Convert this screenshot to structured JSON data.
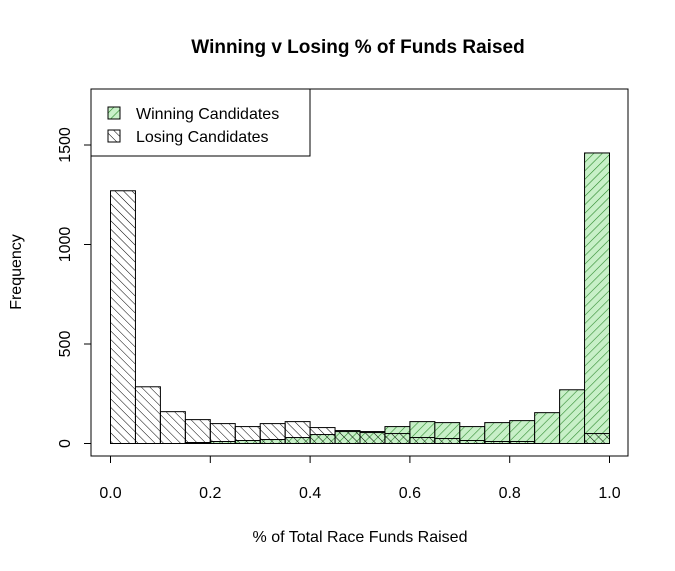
{
  "chart_data": {
    "type": "bar",
    "title": "Winning v Losing % of Funds Raised",
    "xlabel": "% of Total Race Funds Raised",
    "ylabel": "Frequency",
    "xlim": [
      0,
      1
    ],
    "ylim": [
      0,
      1750
    ],
    "x_ticks": [
      "0.0",
      "0.2",
      "0.4",
      "0.6",
      "0.8",
      "1.0"
    ],
    "y_ticks": [
      "0",
      "500",
      "1000",
      "1500"
    ],
    "bin_width": 0.05,
    "bin_starts": [
      0.0,
      0.05,
      0.1,
      0.15,
      0.2,
      0.25,
      0.3,
      0.35,
      0.4,
      0.45,
      0.5,
      0.55,
      0.6,
      0.65,
      0.7,
      0.75,
      0.8,
      0.85,
      0.9,
      0.95
    ],
    "legend_position": "top-left",
    "grid": false,
    "series": [
      {
        "name": "Winning Candidates",
        "fill": "#c8f0c8",
        "hatch": "#2e8b2e",
        "values": [
          0,
          0,
          0,
          5,
          10,
          15,
          20,
          30,
          45,
          60,
          60,
          85,
          110,
          105,
          85,
          105,
          115,
          155,
          270,
          1460
        ]
      },
      {
        "name": "Losing Candidates",
        "fill": "none",
        "hatch": "#000000",
        "values": [
          1270,
          285,
          160,
          120,
          100,
          85,
          100,
          110,
          80,
          65,
          55,
          50,
          30,
          25,
          15,
          10,
          10,
          0,
          0,
          50
        ]
      }
    ]
  }
}
